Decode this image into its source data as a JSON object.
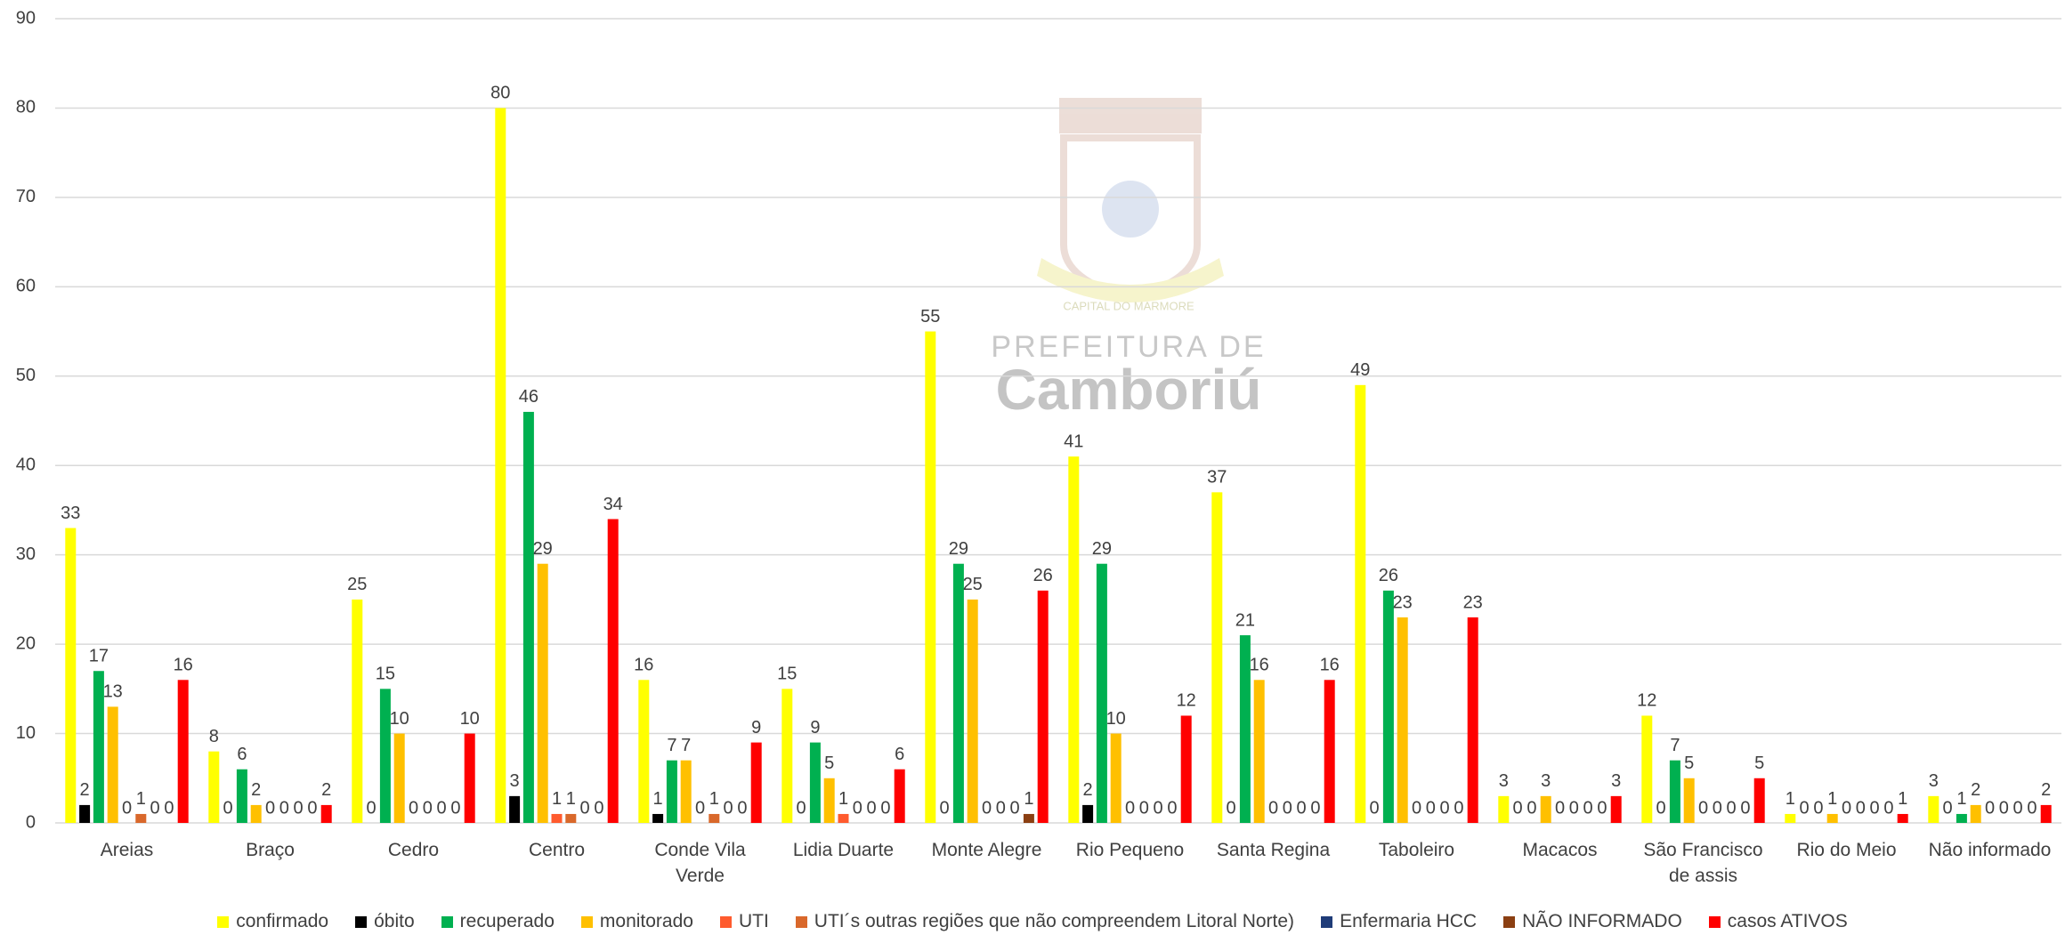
{
  "chart_data": {
    "type": "bar",
    "watermark": {
      "line1": "PREFEITURA DE",
      "line2": "Camboriú",
      "motto": "CAPITAL DO MARMORE"
    },
    "categories": [
      "Areias",
      "Braço",
      "Cedro",
      "Centro",
      "Conde Vila Verde",
      "Lidia Duarte",
      "Monte Alegre",
      "Rio Pequeno",
      "Santa Regina",
      "Taboleiro",
      "Macacos",
      "São Francisco de assis",
      "Rio do Meio",
      "Não informado"
    ],
    "series": [
      {
        "name": "confirmado",
        "color": "#FFFF00",
        "values": [
          33,
          8,
          25,
          80,
          16,
          15,
          55,
          41,
          37,
          49,
          3,
          12,
          1,
          3
        ]
      },
      {
        "name": "óbito",
        "color": "#000000",
        "values": [
          2,
          0,
          0,
          3,
          1,
          0,
          0,
          2,
          0,
          0,
          0,
          0,
          0,
          0
        ]
      },
      {
        "name": "recuperado",
        "color": "#00B050",
        "values": [
          17,
          6,
          15,
          46,
          7,
          9,
          29,
          29,
          21,
          26,
          0,
          7,
          0,
          1
        ]
      },
      {
        "name": "monitorado",
        "color": "#FFC000",
        "values": [
          13,
          2,
          10,
          29,
          7,
          5,
          25,
          10,
          16,
          23,
          3,
          5,
          1,
          2
        ]
      },
      {
        "name": "UTI",
        "color": "#FF5B2E",
        "values": [
          0,
          0,
          0,
          1,
          0,
          1,
          0,
          0,
          0,
          0,
          0,
          0,
          0,
          0
        ]
      },
      {
        "name": "UTI´s outras regiões que não compreendem Litoral Norte)",
        "color": "#D9682B",
        "values": [
          1,
          0,
          0,
          1,
          1,
          0,
          0,
          0,
          0,
          0,
          0,
          0,
          0,
          0
        ]
      },
      {
        "name": "Enfermaria HCC",
        "color": "#1F3C78",
        "values": [
          0,
          0,
          0,
          0,
          0,
          0,
          0,
          0,
          0,
          0,
          0,
          0,
          0,
          0
        ]
      },
      {
        "name": "NÃO INFORMADO",
        "color": "#8B3F12",
        "values": [
          0,
          0,
          0,
          0,
          0,
          0,
          1,
          0,
          0,
          0,
          0,
          0,
          0,
          0
        ]
      },
      {
        "name": "casos ATIVOS",
        "color": "#FF0000",
        "values": [
          16,
          2,
          10,
          34,
          9,
          6,
          26,
          12,
          16,
          23,
          3,
          5,
          1,
          2
        ]
      }
    ],
    "ylim": [
      0,
      90
    ],
    "yticks": [
      0,
      10,
      20,
      30,
      40,
      50,
      60,
      70,
      80,
      90
    ],
    "grid": true,
    "legend": "bottom"
  }
}
